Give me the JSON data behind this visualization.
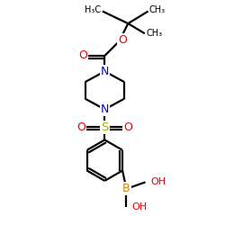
{
  "bg_color": "#ffffff",
  "atom_colors": {
    "C": "#000000",
    "N": "#0000ee",
    "O": "#ee0000",
    "S": "#aaaa00",
    "B": "#cc8800"
  },
  "bond_color": "#000000",
  "bond_width": 1.6,
  "figsize": [
    2.5,
    2.5
  ],
  "dpi": 100,
  "xlim": [
    0,
    10
  ],
  "ylim": [
    0,
    10
  ]
}
